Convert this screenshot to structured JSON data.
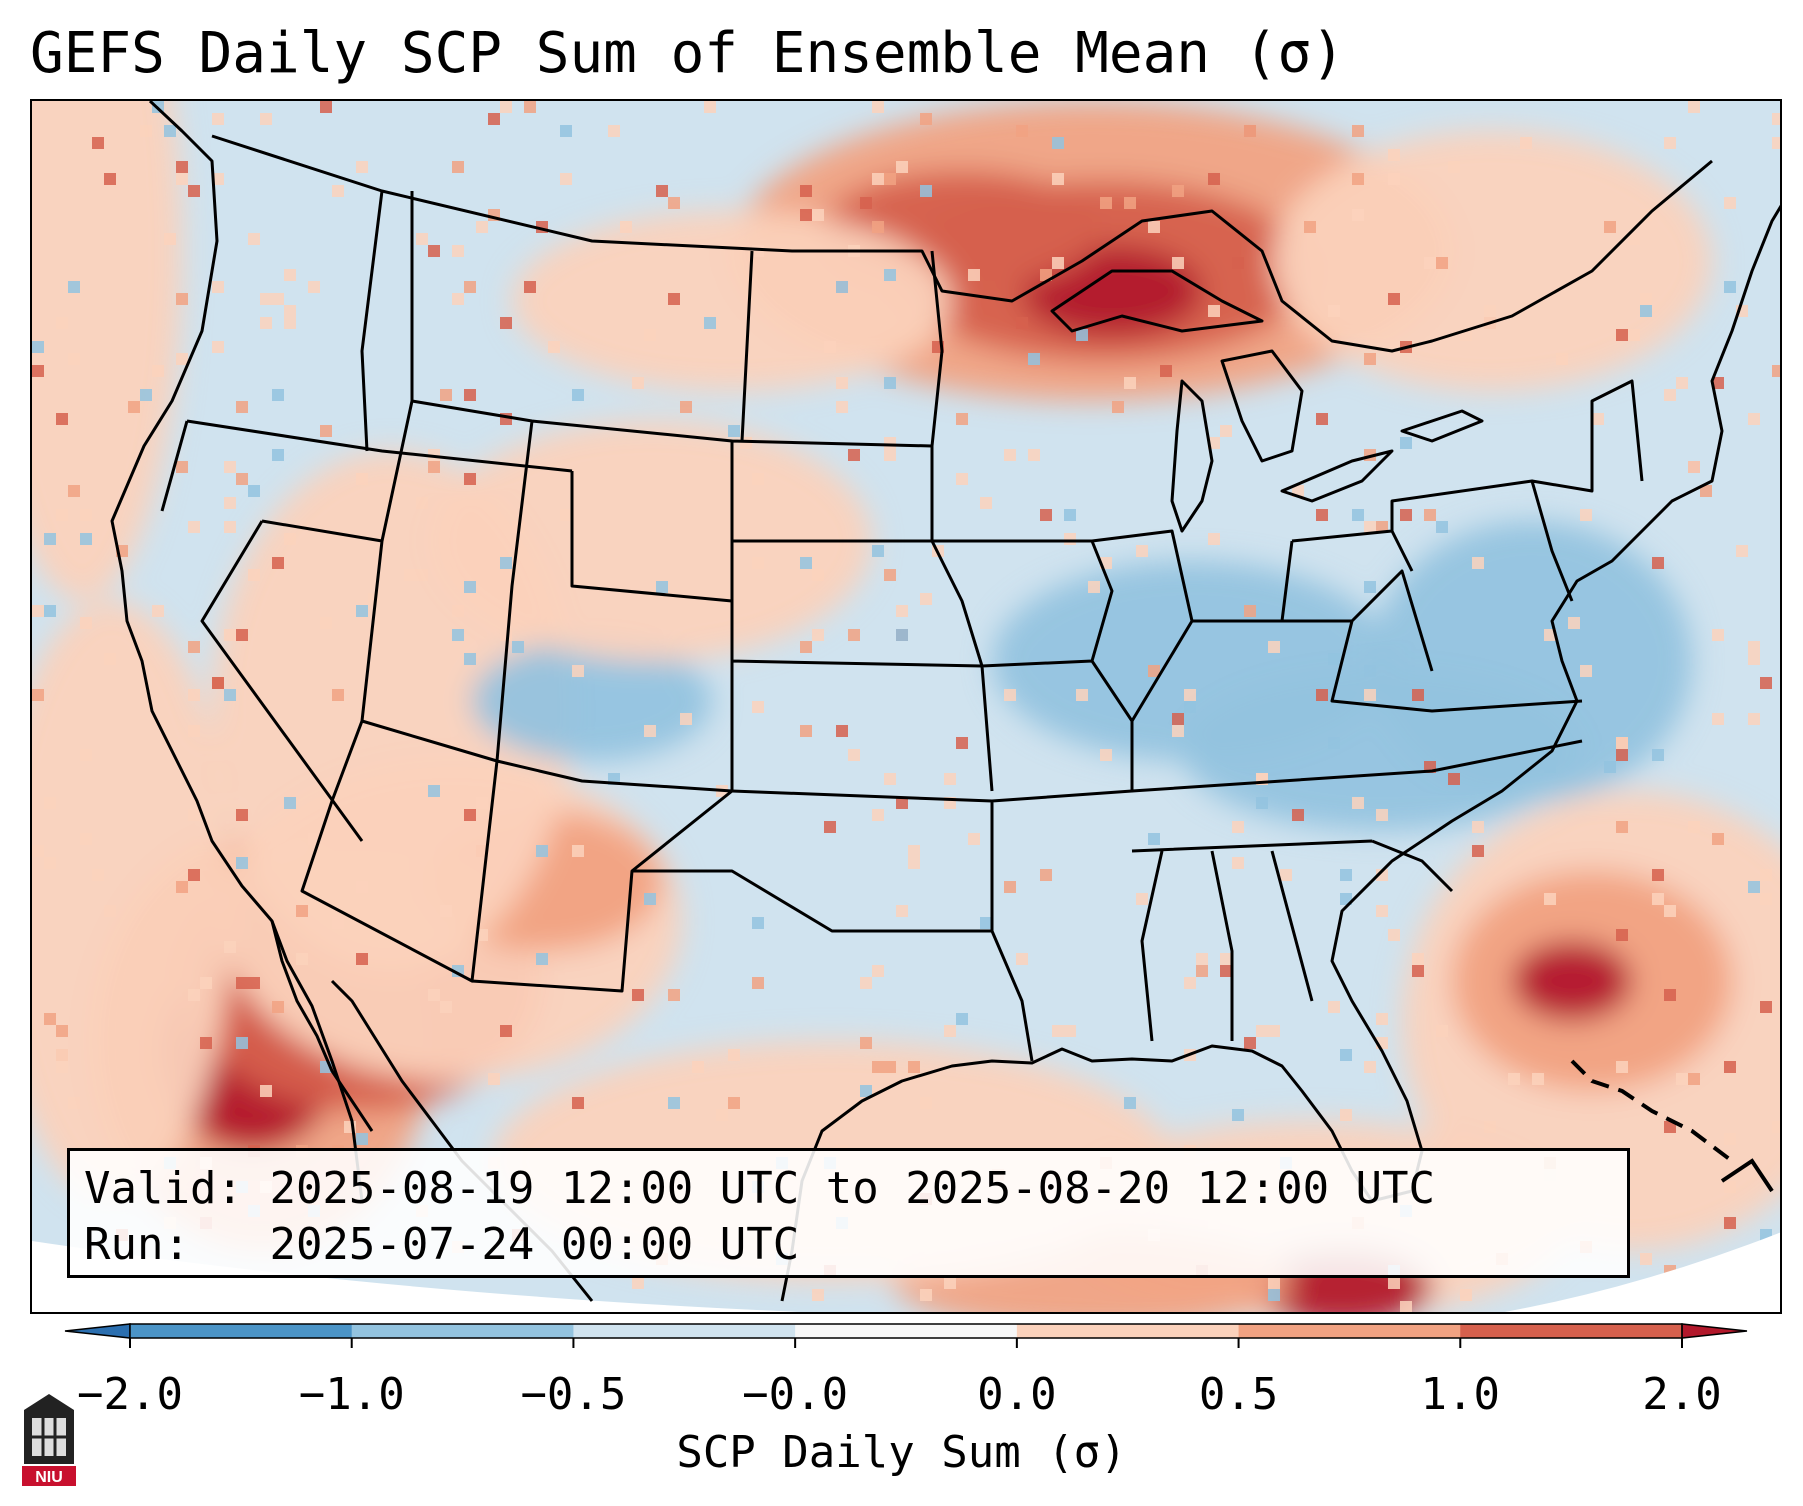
{
  "title": "GEFS Daily SCP Sum of Ensemble Mean (σ)",
  "info": {
    "valid_label": "Valid:",
    "valid_value": "2025-08-19 12:00 UTC to 2025-08-20 12:00 UTC",
    "run_label": "Run:",
    "run_value": "2025-07-24 00:00 UTC"
  },
  "colorbar": {
    "label": "SCP Daily Sum (σ)",
    "ticks": [
      "−2.0",
      "−1.0",
      "−0.5",
      "−0.0",
      "0.0",
      "0.5",
      "1.0",
      "2.0"
    ],
    "bin_colors": [
      "#2b6fb0",
      "#4b94c7",
      "#93c3df",
      "#d0e3ef",
      "#f7f7f7",
      "#fbd2bc",
      "#f1a282",
      "#d6604d",
      "#b2182b"
    ],
    "extend": "both"
  },
  "map": {
    "region": "Continental United States",
    "high_anomaly_areas": [
      "Upper Midwest / Lake Superior",
      "Northern Mexico / Gulf of California",
      "Western Atlantic off the Carolinas"
    ],
    "low_anomaly_areas": [
      "Ohio Valley",
      "Mid-Atlantic"
    ]
  },
  "logo": {
    "text": "NIU"
  }
}
